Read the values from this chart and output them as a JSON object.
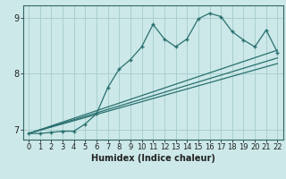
{
  "xlabel": "Humidex (Indice chaleur)",
  "bg_color": "#cce8e8",
  "grid_color": "#aacfcf",
  "line_color": "#2a7070",
  "spine_color": "#336666",
  "xlim": [
    -0.5,
    22.5
  ],
  "ylim": [
    6.82,
    9.22
  ],
  "yticks": [
    7,
    8,
    9
  ],
  "xticks": [
    0,
    1,
    2,
    3,
    4,
    5,
    6,
    7,
    8,
    9,
    10,
    11,
    12,
    13,
    14,
    15,
    16,
    17,
    18,
    19,
    20,
    21,
    22
  ],
  "line1_x": [
    0,
    1,
    2,
    3,
    4,
    5,
    6,
    7,
    8,
    9,
    10,
    11,
    12,
    13,
    14,
    15,
    16,
    17,
    18,
    19,
    20,
    21,
    22
  ],
  "line1_y": [
    6.93,
    6.93,
    6.95,
    6.97,
    6.97,
    7.1,
    7.28,
    7.75,
    8.08,
    8.25,
    8.48,
    8.88,
    8.62,
    8.48,
    8.62,
    8.98,
    9.08,
    9.02,
    8.75,
    8.6,
    8.48,
    8.78,
    8.38
  ],
  "line2_x": [
    0,
    22
  ],
  "line2_y": [
    6.93,
    8.42
  ],
  "line3_x": [
    0,
    22
  ],
  "line3_y": [
    6.93,
    8.28
  ],
  "line4_x": [
    0,
    22
  ],
  "line4_y": [
    6.93,
    8.18
  ]
}
